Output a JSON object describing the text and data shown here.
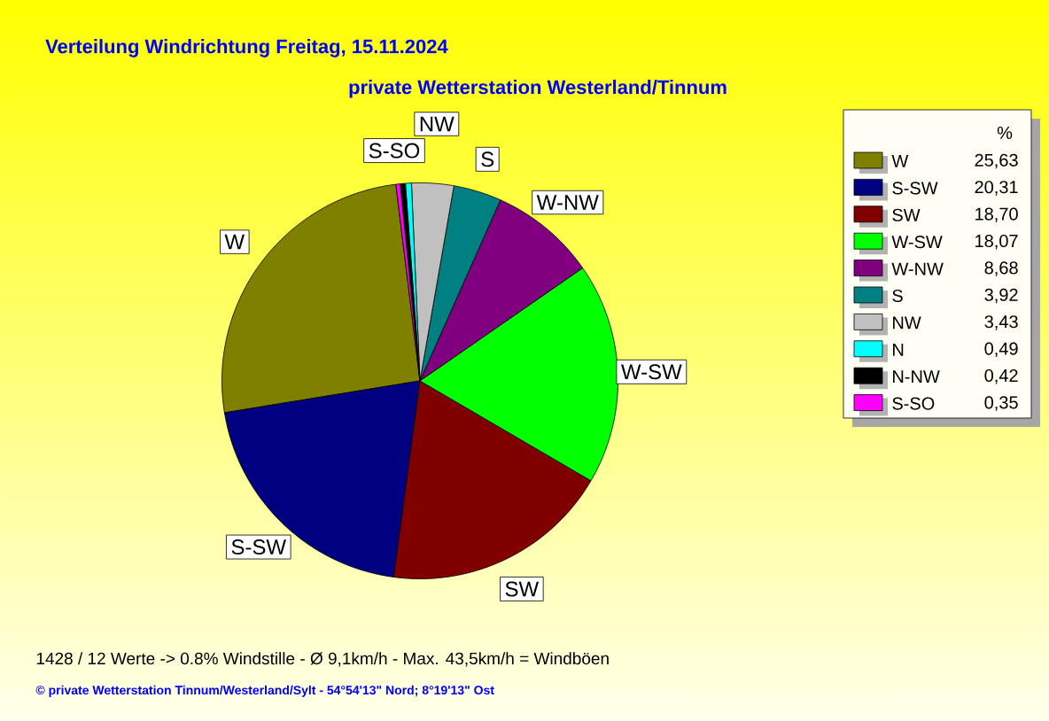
{
  "chart_data": {
    "type": "pie",
    "title": "Verteilung Windrichtung   Freitag, 15.11.2024",
    "subtitle": "private Wetterstation Westerland/Tinnum",
    "legend_title": "%",
    "legend": "right",
    "categories": [
      "W",
      "S-SW",
      "SW",
      "W-SW",
      "W-NW",
      "S",
      "NW",
      "N",
      "N-NW",
      "S-SO"
    ],
    "values": [
      25.63,
      20.31,
      18.7,
      18.07,
      8.68,
      3.92,
      3.43,
      0.49,
      0.42,
      0.35
    ],
    "value_labels": [
      "25,63",
      "20,31",
      "18,70",
      "18,07",
      "8,68",
      "3,92",
      "3,43",
      "0,49",
      "0,42",
      "0,35"
    ],
    "colors": [
      "#808000",
      "#000080",
      "#800000",
      "#00ff00",
      "#800080",
      "#008080",
      "#c0c0c0",
      "#00ffff",
      "#000000",
      "#ff00ff"
    ],
    "annotations": [
      {
        "text": "W",
        "x": "W"
      },
      {
        "text": "S-SW",
        "x": "S-SW"
      },
      {
        "text": "SW",
        "x": "SW"
      },
      {
        "text": "W-SW",
        "x": "W-SW"
      },
      {
        "text": "W-NW",
        "x": "W-NW"
      },
      {
        "text": "S",
        "x": "S"
      },
      {
        "text": "NW",
        "x": "NW"
      },
      {
        "text": "S-SO",
        "x": "S-SO"
      },
      "1428 / 12 Werte  -> 0.8% Windstille   -   Ø 9,1km/h  -  Max. 43,5km/h = Windböen",
      "© private Wetterstation Tinnum/Westerland/Sylt  -  54°54'13\" Nord; 8°19'13\" Ost"
    ]
  }
}
